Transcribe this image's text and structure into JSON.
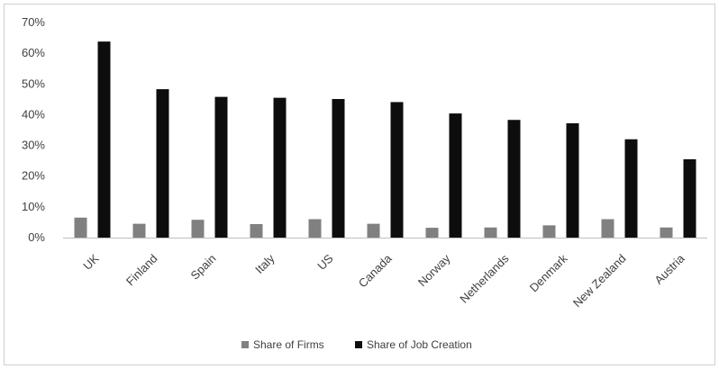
{
  "chart_data": {
    "type": "bar",
    "categories": [
      "UK",
      "Finland",
      "Spain",
      "Italy",
      "US",
      "Canada",
      "Norway",
      "Netherlands",
      "Denmark",
      "New Zealand",
      "Austria"
    ],
    "series": [
      {
        "name": "Share of Firms",
        "color": "#808080",
        "values": [
          6.5,
          4.5,
          5.8,
          4.4,
          6.0,
          4.5,
          3.2,
          3.3,
          4.0,
          6.0,
          3.3
        ]
      },
      {
        "name": "Share of Job Creation",
        "color": "#0d0d0d",
        "values": [
          63.8,
          48.3,
          45.8,
          45.5,
          45.1,
          44.1,
          40.4,
          38.3,
          37.2,
          32.0,
          25.5
        ]
      }
    ],
    "ylim": [
      0,
      70
    ],
    "yticks": [
      "0%",
      "10%",
      "20%",
      "30%",
      "40%",
      "50%",
      "60%",
      "70%"
    ],
    "ytick_values": [
      0,
      10,
      20,
      30,
      40,
      50,
      60,
      70
    ],
    "grid": false,
    "legend_position": "bottom",
    "title": "",
    "xlabel": "",
    "ylabel": ""
  }
}
